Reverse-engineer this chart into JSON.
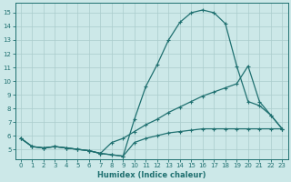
{
  "xlabel": "Humidex (Indice chaleur)",
  "xlim": [
    -0.5,
    23.5
  ],
  "ylim": [
    4.3,
    15.7
  ],
  "yticks": [
    5,
    6,
    7,
    8,
    9,
    10,
    11,
    12,
    13,
    14,
    15
  ],
  "xticks": [
    0,
    1,
    2,
    3,
    4,
    5,
    6,
    7,
    8,
    9,
    10,
    11,
    12,
    13,
    14,
    15,
    16,
    17,
    18,
    19,
    20,
    21,
    22,
    23
  ],
  "bg_color": "#cce8e8",
  "grid_color": "#aacccc",
  "line_color": "#1f7070",
  "curve1_x": [
    0,
    1,
    2,
    3,
    4,
    5,
    6,
    7,
    8,
    9,
    10,
    11,
    12,
    13,
    14,
    15,
    16,
    17,
    18,
    19,
    20,
    21,
    22,
    23
  ],
  "curve1_y": [
    5.8,
    5.2,
    5.1,
    5.2,
    5.1,
    5.0,
    4.9,
    4.7,
    4.6,
    4.5,
    7.2,
    9.6,
    11.2,
    13.0,
    14.3,
    15.0,
    15.2,
    15.0,
    14.2,
    11.1,
    8.5,
    8.2,
    7.5,
    6.5
  ],
  "curve2_x": [
    0,
    1,
    2,
    3,
    4,
    5,
    6,
    7,
    8,
    9,
    10,
    11,
    12,
    13,
    14,
    15,
    16,
    17,
    18,
    19,
    20,
    21,
    22,
    23
  ],
  "curve2_y": [
    5.8,
    5.2,
    5.1,
    5.2,
    5.1,
    5.0,
    4.9,
    4.7,
    5.5,
    5.8,
    6.3,
    6.8,
    7.2,
    7.7,
    8.1,
    8.5,
    8.9,
    9.2,
    9.5,
    9.8,
    11.1,
    8.5,
    7.5,
    6.5
  ],
  "curve3_x": [
    0,
    1,
    2,
    3,
    4,
    5,
    6,
    7,
    8,
    9,
    10,
    11,
    12,
    13,
    14,
    15,
    16,
    17,
    18,
    19,
    20,
    21,
    22,
    23
  ],
  "curve3_y": [
    5.8,
    5.2,
    5.1,
    5.2,
    5.1,
    5.0,
    4.9,
    4.7,
    4.6,
    4.5,
    5.5,
    5.8,
    6.0,
    6.2,
    6.3,
    6.4,
    6.5,
    6.5,
    6.5,
    6.5,
    6.5,
    6.5,
    6.5,
    6.5
  ]
}
